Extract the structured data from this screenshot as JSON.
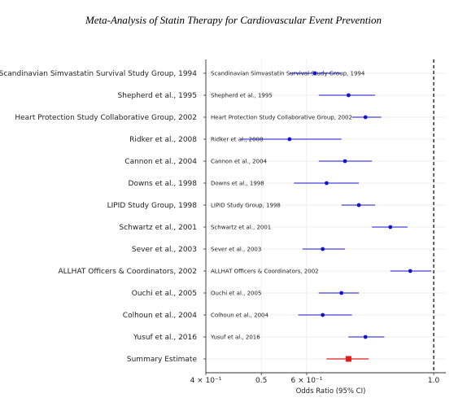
{
  "chart_data": {
    "type": "forest",
    "title": "Meta-Analysis of Statin Therapy for Cardiovascular Event Prevention",
    "xlabel": "Odds Ratio (95% CI)",
    "xscale": "log",
    "xlim": [
      0.4,
      1.05
    ],
    "xticks": [
      {
        "value": 0.4,
        "label": "4 × 10⁻¹"
      },
      {
        "value": 0.5,
        "label": "0.5"
      },
      {
        "value": 0.6,
        "label": "6 × 10⁻¹"
      },
      {
        "value": 1.0,
        "label": "1.0"
      }
    ],
    "reference_line": 1.0,
    "studies": [
      {
        "name": "Scandinavian Simvastatin Survival Study Group, 1994",
        "or": 0.62,
        "lo": 0.56,
        "hi": 0.69
      },
      {
        "name": "Shepherd et al., 1995",
        "or": 0.71,
        "lo": 0.63,
        "hi": 0.79
      },
      {
        "name": "Heart Protection Study Collaborative Group, 2002",
        "or": 0.76,
        "lo": 0.72,
        "hi": 0.81
      },
      {
        "name": "Ridker et al., 2008",
        "or": 0.56,
        "lo": 0.46,
        "hi": 0.69
      },
      {
        "name": "Cannon et al., 2004",
        "or": 0.7,
        "lo": 0.63,
        "hi": 0.78
      },
      {
        "name": "Downs et al., 1998",
        "or": 0.65,
        "lo": 0.57,
        "hi": 0.74
      },
      {
        "name": "LIPID Study Group, 1998",
        "or": 0.74,
        "lo": 0.69,
        "hi": 0.79
      },
      {
        "name": "Schwartz et al., 2001",
        "or": 0.84,
        "lo": 0.78,
        "hi": 0.9
      },
      {
        "name": "Sever et al., 2003",
        "or": 0.64,
        "lo": 0.59,
        "hi": 0.7
      },
      {
        "name": "ALLHAT Officers & Coordinators, 2002",
        "or": 0.91,
        "lo": 0.84,
        "hi": 0.99
      },
      {
        "name": "Ouchi et al., 2005",
        "or": 0.69,
        "lo": 0.63,
        "hi": 0.74
      },
      {
        "name": "Colhoun et al., 2004",
        "or": 0.64,
        "lo": 0.58,
        "hi": 0.72
      },
      {
        "name": "Yusuf et al., 2016",
        "or": 0.76,
        "lo": 0.71,
        "hi": 0.82
      }
    ],
    "summary": {
      "name": "Summary Estimate",
      "or": 0.71,
      "lo": 0.65,
      "hi": 0.77
    },
    "colors": {
      "study": "#1414cc",
      "summary": "#e21b1b",
      "reference": "#000000",
      "grid": "#e6e6e6"
    }
  }
}
